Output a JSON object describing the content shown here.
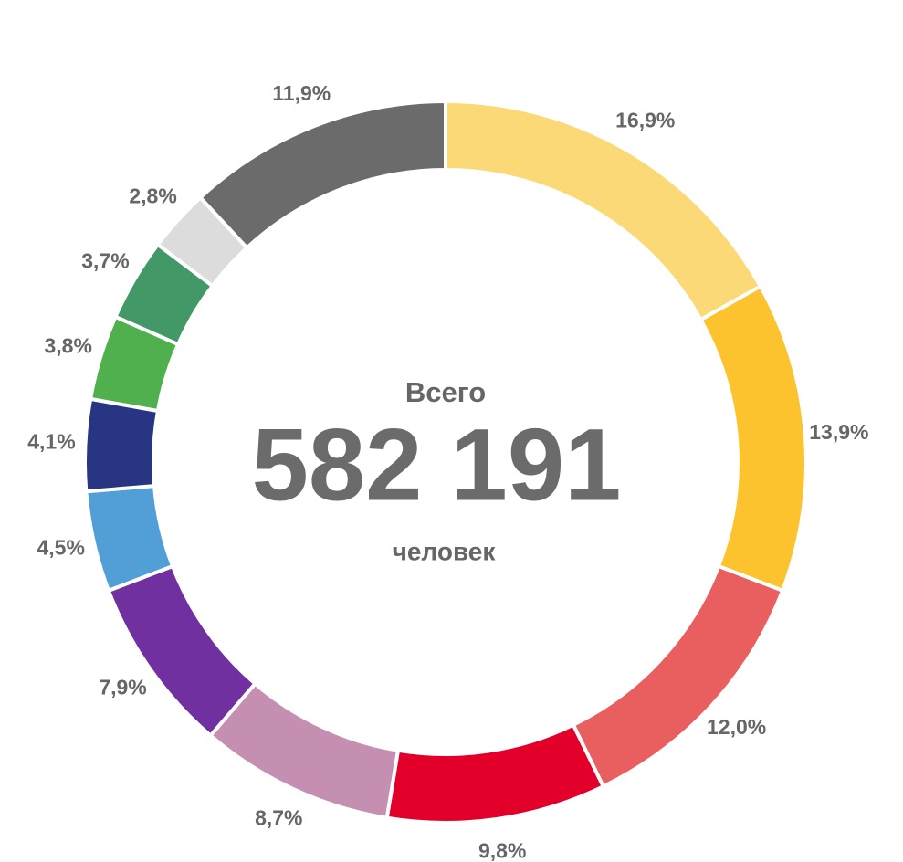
{
  "chart_data": {
    "type": "donut",
    "values": [
      16.9,
      13.9,
      12.0,
      9.8,
      8.7,
      7.9,
      4.5,
      4.1,
      3.8,
      3.7,
      2.8,
      11.9
    ],
    "value_labels": [
      "16,9%",
      "13,9%",
      "12,0%",
      "9,8%",
      "8,7%",
      "7,9%",
      "4,5%",
      "4,1%",
      "3,8%",
      "3,7%",
      "2,8%",
      "11,9%"
    ],
    "colors": [
      "#fcd977",
      "#fcc32e",
      "#e95e5e",
      "#e2002b",
      "#c58fb1",
      "#7030a0",
      "#529fd8",
      "#283583",
      "#50b04e",
      "#429866",
      "#dcdcdc",
      "#6b6b6b"
    ],
    "center": {
      "top": "Всего",
      "total": "582 191",
      "bottom": "человек"
    }
  }
}
